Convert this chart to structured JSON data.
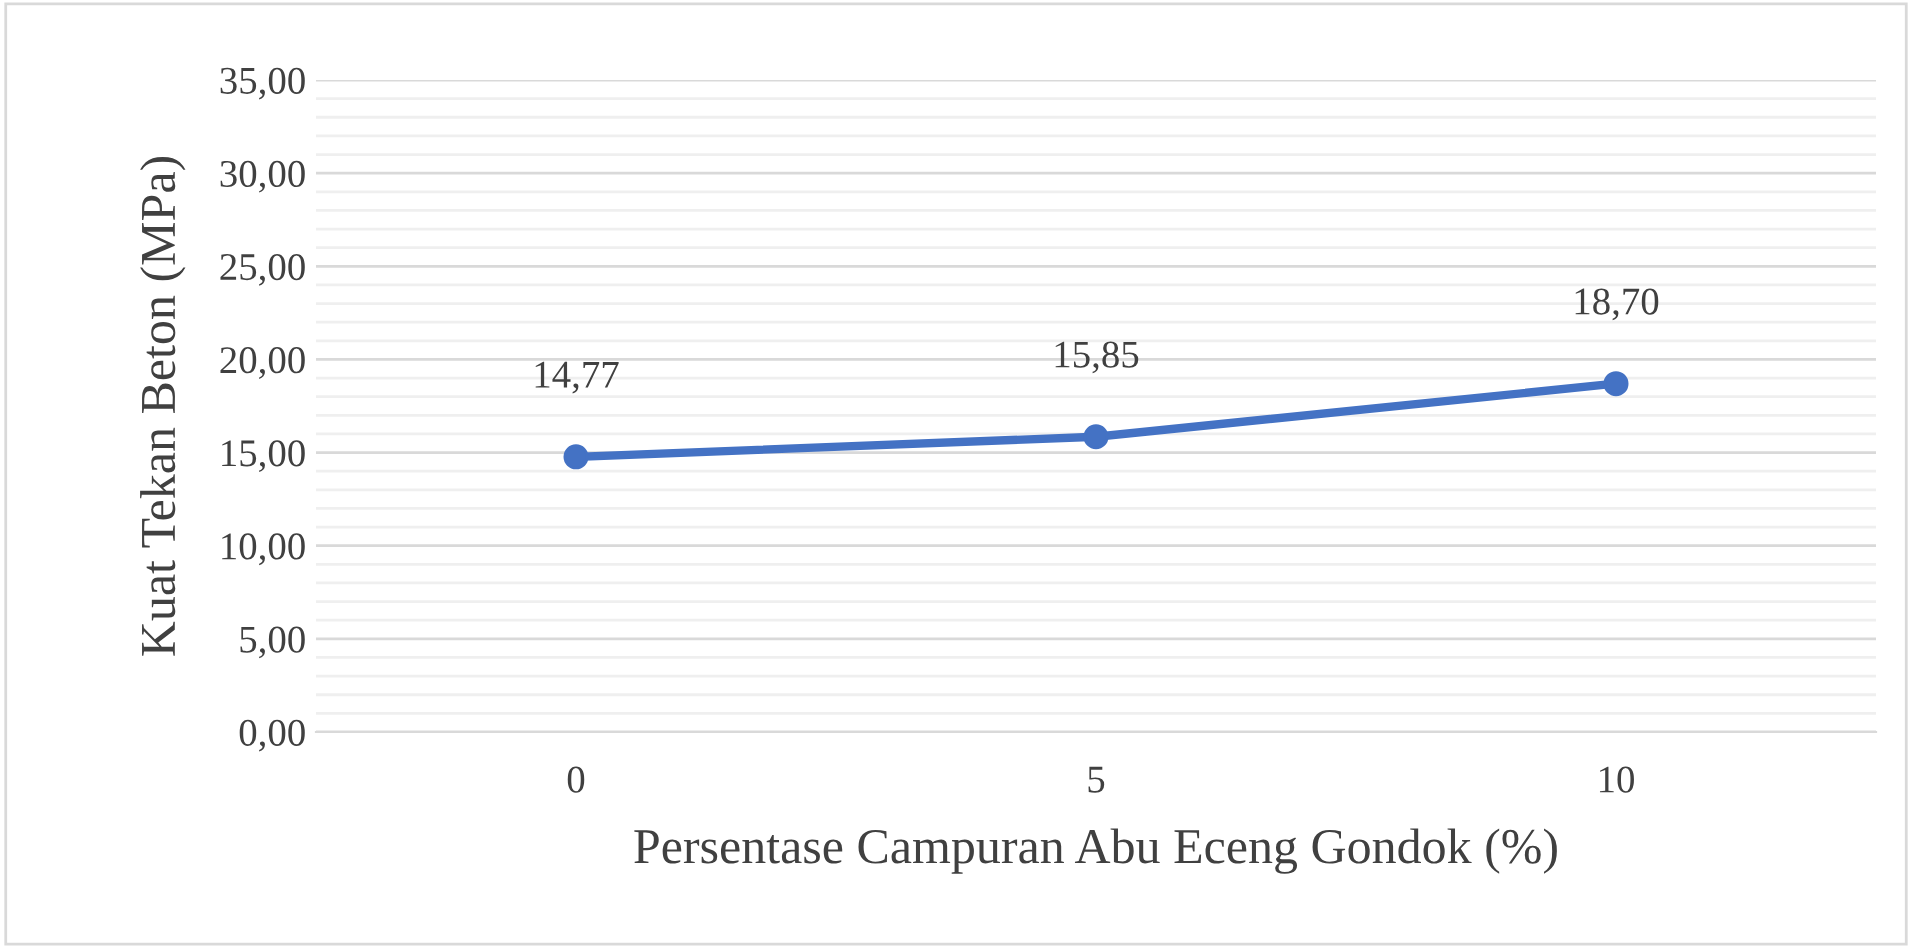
{
  "chart_data": {
    "type": "line",
    "xlabel": "Persentase Campuran Abu Eceng Gondok (%)",
    "ylabel": "Kuat Tekan Beton (MPa)",
    "categories": [
      "0",
      "5",
      "10"
    ],
    "series": [
      {
        "color": "#4472c4",
        "values": [
          14.77,
          15.85,
          18.7
        ],
        "value_labels": [
          "14,77",
          "15,85",
          "18,70"
        ]
      }
    ],
    "ylim": [
      0,
      35
    ],
    "yticks": [
      {
        "value": 0,
        "label": "0,00"
      },
      {
        "value": 1,
        "label": null
      },
      {
        "value": 2,
        "label": null
      },
      {
        "value": 3,
        "label": null
      },
      {
        "value": 4,
        "label": null
      },
      {
        "value": 5,
        "label": "5,00"
      },
      {
        "value": 6,
        "label": null
      },
      {
        "value": 7,
        "label": null
      },
      {
        "value": 8,
        "label": null
      },
      {
        "value": 9,
        "label": null
      },
      {
        "value": 10,
        "label": "10,00"
      },
      {
        "value": 11,
        "label": null
      },
      {
        "value": 12,
        "label": null
      },
      {
        "value": 13,
        "label": null
      },
      {
        "value": 14,
        "label": null
      },
      {
        "value": 15,
        "label": "15,00"
      },
      {
        "value": 16,
        "label": null
      },
      {
        "value": 17,
        "label": null
      },
      {
        "value": 18,
        "label": null
      },
      {
        "value": 19,
        "label": null
      },
      {
        "value": 20,
        "label": "20,00"
      },
      {
        "value": 21,
        "label": null
      },
      {
        "value": 22,
        "label": null
      },
      {
        "value": 23,
        "label": null
      },
      {
        "value": 24,
        "label": null
      },
      {
        "value": 25,
        "label": "25,00"
      },
      {
        "value": 26,
        "label": null
      },
      {
        "value": 27,
        "label": null
      },
      {
        "value": 28,
        "label": null
      },
      {
        "value": 29,
        "label": null
      },
      {
        "value": 30,
        "label": "30,00"
      },
      {
        "value": 31,
        "label": null
      },
      {
        "value": 32,
        "label": null
      },
      {
        "value": 33,
        "label": null
      },
      {
        "value": 34,
        "label": null
      },
      {
        "value": 35,
        "label": "35,00"
      }
    ],
    "grid": "y",
    "marker": "circle",
    "line_style": "solid",
    "legend": false
  }
}
